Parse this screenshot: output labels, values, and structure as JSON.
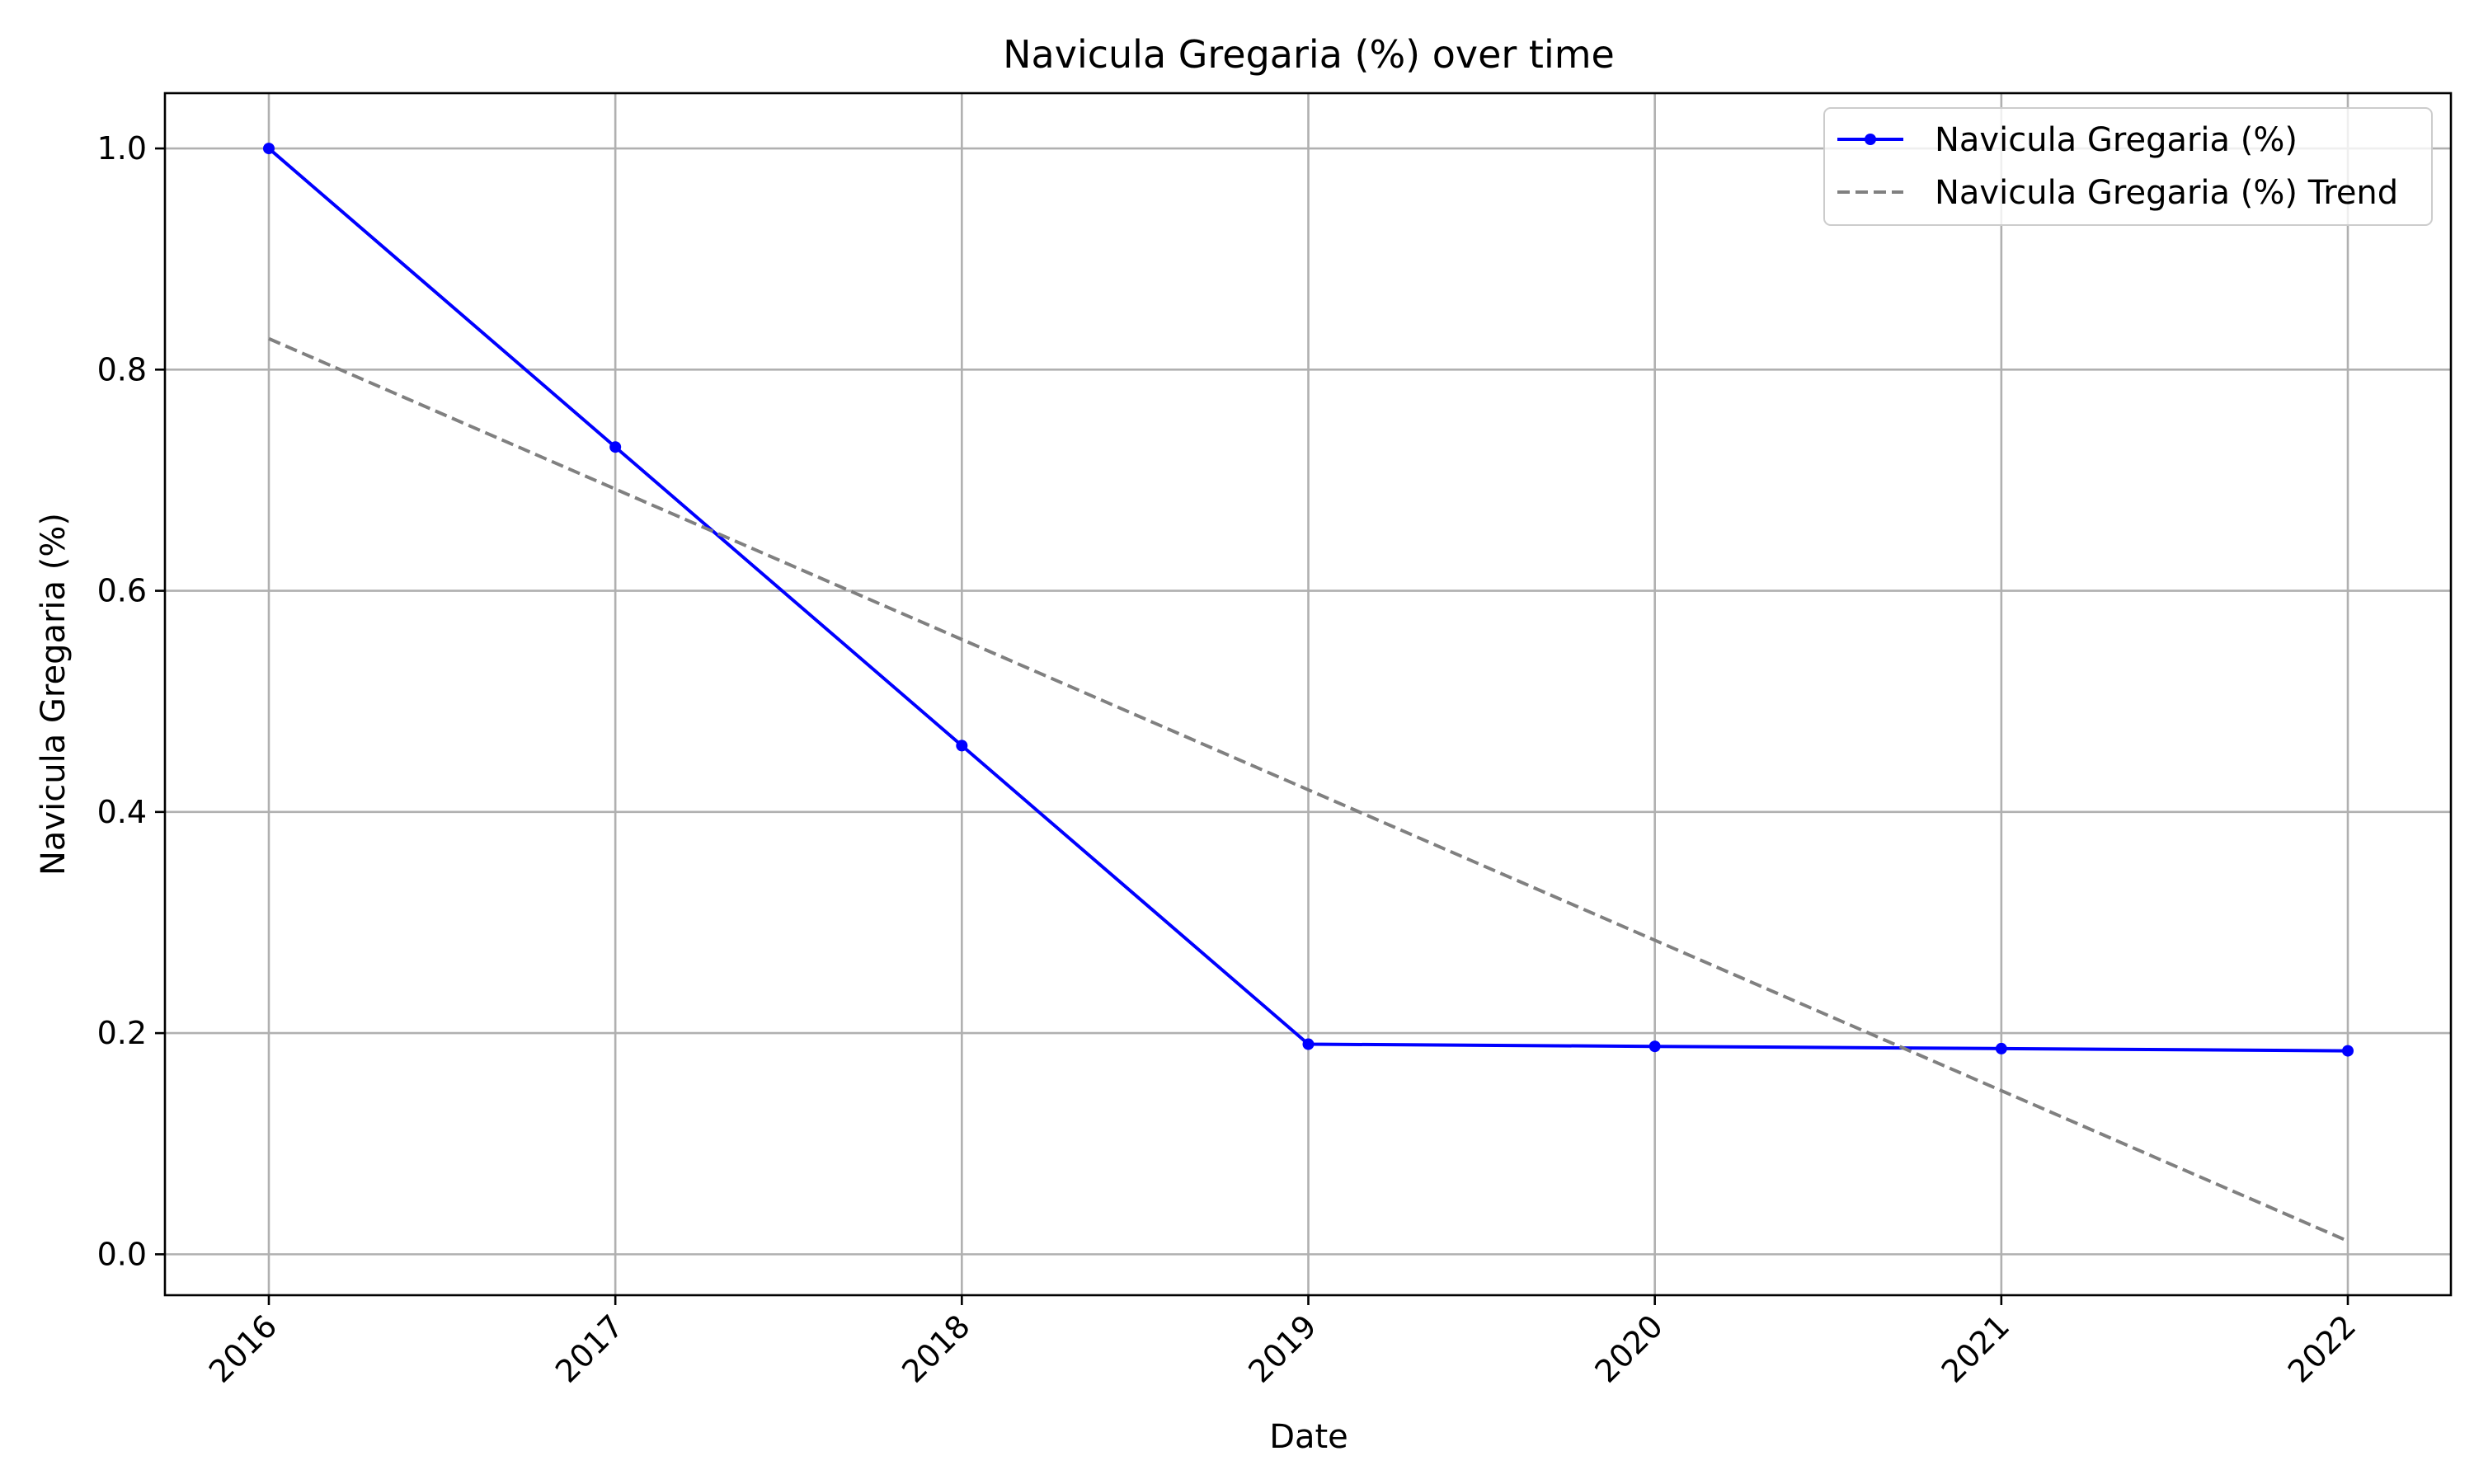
{
  "chart_data": {
    "type": "line",
    "title": "Navicula Gregaria (%) over time",
    "xlabel": "Date",
    "ylabel": "Navicula Gregaria (%)",
    "x": [
      "2016",
      "2017",
      "2018",
      "2019",
      "2020",
      "2021",
      "2022"
    ],
    "x_tick_labels": [
      "2016",
      "2017",
      "2018",
      "2019",
      "2020",
      "2021",
      "2022"
    ],
    "y_tick_labels": [
      "0.0",
      "0.2",
      "0.4",
      "0.6",
      "0.8",
      "1.0"
    ],
    "y_ticks": [
      0.0,
      0.2,
      0.4,
      0.6,
      0.8,
      1.0
    ],
    "ylim": [
      -0.037,
      1.05
    ],
    "grid": true,
    "legend_position": "top-right",
    "series": [
      {
        "name": "Navicula Gregaria (%)",
        "values": [
          1.0,
          0.73,
          0.46,
          0.19,
          0.188,
          0.186,
          0.184
        ],
        "color": "#0000ff",
        "style": "solid",
        "marker": "circle"
      },
      {
        "name": "Navicula Gregaria (%) Trend",
        "values": [
          0.828,
          0.692,
          0.556,
          0.42,
          0.284,
          0.148,
          0.012
        ],
        "color": "#808080",
        "style": "dashed",
        "marker": "none"
      }
    ]
  }
}
